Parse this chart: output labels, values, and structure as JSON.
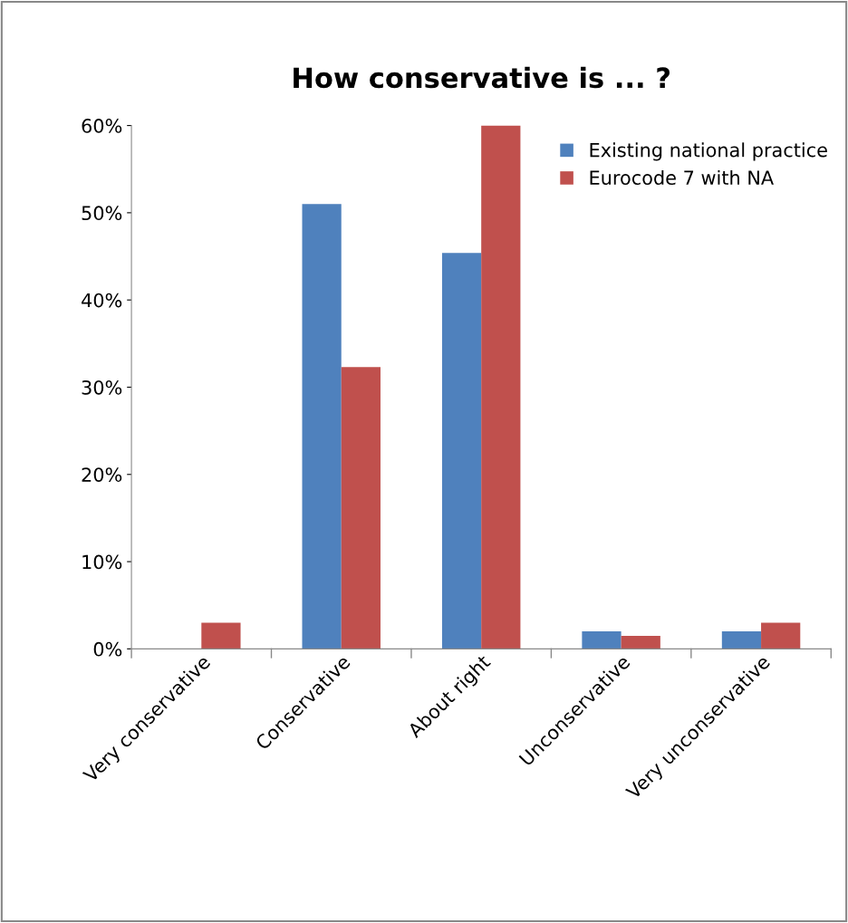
{
  "chart_data": {
    "type": "bar",
    "title": "How conservative is ... ?",
    "categories": [
      "Very conservative",
      "Conservative",
      "About right",
      "Unconservative",
      "Very unconservative"
    ],
    "series": [
      {
        "name": "Existing national practice",
        "color": "#4f81bd",
        "values": [
          0,
          51,
          45.4,
          2,
          2
        ]
      },
      {
        "name": "Eurocode 7 with NA",
        "color": "#c0504d",
        "values": [
          3,
          32.3,
          60,
          1.5,
          3
        ]
      }
    ],
    "ylim": [
      0,
      60
    ],
    "yticks": [
      {
        "value": 0,
        "label": "0%"
      },
      {
        "value": 10,
        "label": "10%"
      },
      {
        "value": 20,
        "label": "20%"
      },
      {
        "value": 30,
        "label": "30%"
      },
      {
        "value": 40,
        "label": "40%"
      },
      {
        "value": 50,
        "label": "50%"
      },
      {
        "value": 60,
        "label": "60%"
      }
    ],
    "grid": false,
    "legend": "top right"
  }
}
